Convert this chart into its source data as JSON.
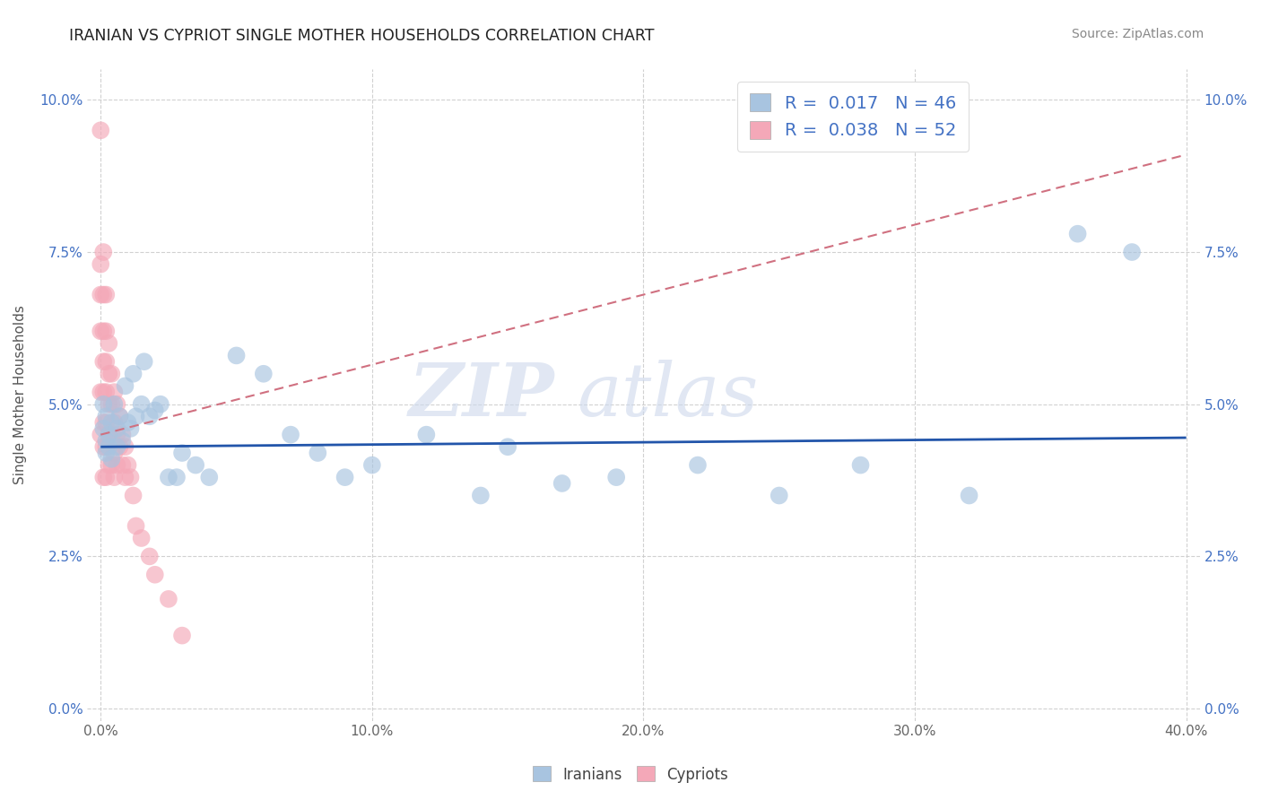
{
  "title": "IRANIAN VS CYPRIOT SINGLE MOTHER HOUSEHOLDS CORRELATION CHART",
  "source": "Source: ZipAtlas.com",
  "ylabel": "Single Mother Households",
  "xlim": [
    -0.005,
    0.405
  ],
  "ylim": [
    -0.002,
    0.105
  ],
  "xticks": [
    0.0,
    0.1,
    0.2,
    0.3,
    0.4
  ],
  "yticks": [
    0.0,
    0.025,
    0.05,
    0.075,
    0.1
  ],
  "xticklabels": [
    "0.0%",
    "10.0%",
    "20.0%",
    "30.0%",
    "40.0%"
  ],
  "yticklabels": [
    "0.0%",
    "2.5%",
    "5.0%",
    "7.5%",
    "10.0%"
  ],
  "iranian_color": "#a8c4e0",
  "cypriot_color": "#f4a8b8",
  "iranian_line_color": "#2255aa",
  "cypriot_line_color": "#d07080",
  "legend_R_iranian": "0.017",
  "legend_N_iranian": "46",
  "legend_R_cypriot": "0.038",
  "legend_N_cypriot": "52",
  "iranians_label": "Iranians",
  "cypriots_label": "Cypriots",
  "iranian_x": [
    0.001,
    0.001,
    0.002,
    0.002,
    0.002,
    0.003,
    0.003,
    0.004,
    0.004,
    0.005,
    0.006,
    0.006,
    0.007,
    0.008,
    0.009,
    0.01,
    0.011,
    0.012,
    0.013,
    0.015,
    0.016,
    0.018,
    0.02,
    0.022,
    0.025,
    0.028,
    0.03,
    0.035,
    0.04,
    0.05,
    0.06,
    0.07,
    0.08,
    0.09,
    0.1,
    0.12,
    0.14,
    0.15,
    0.17,
    0.19,
    0.22,
    0.25,
    0.28,
    0.32,
    0.36,
    0.38
  ],
  "iranian_y": [
    0.05,
    0.046,
    0.048,
    0.044,
    0.042,
    0.045,
    0.043,
    0.047,
    0.041,
    0.05,
    0.046,
    0.043,
    0.048,
    0.044,
    0.053,
    0.047,
    0.046,
    0.055,
    0.048,
    0.05,
    0.057,
    0.048,
    0.049,
    0.05,
    0.038,
    0.038,
    0.042,
    0.04,
    0.038,
    0.058,
    0.055,
    0.045,
    0.042,
    0.038,
    0.04,
    0.045,
    0.035,
    0.043,
    0.037,
    0.038,
    0.04,
    0.035,
    0.04,
    0.035,
    0.078,
    0.075
  ],
  "cypriot_x": [
    0.0,
    0.0,
    0.0,
    0.0,
    0.0,
    0.0,
    0.001,
    0.001,
    0.001,
    0.001,
    0.001,
    0.001,
    0.001,
    0.001,
    0.002,
    0.002,
    0.002,
    0.002,
    0.002,
    0.002,
    0.002,
    0.003,
    0.003,
    0.003,
    0.003,
    0.003,
    0.004,
    0.004,
    0.004,
    0.004,
    0.005,
    0.005,
    0.005,
    0.005,
    0.006,
    0.006,
    0.006,
    0.007,
    0.007,
    0.008,
    0.008,
    0.009,
    0.009,
    0.01,
    0.011,
    0.012,
    0.013,
    0.015,
    0.018,
    0.02,
    0.025,
    0.03
  ],
  "cypriot_y": [
    0.095,
    0.073,
    0.068,
    0.062,
    0.052,
    0.045,
    0.075,
    0.068,
    0.062,
    0.057,
    0.052,
    0.047,
    0.043,
    0.038,
    0.068,
    0.062,
    0.057,
    0.052,
    0.047,
    0.043,
    0.038,
    0.06,
    0.055,
    0.05,
    0.045,
    0.04,
    0.055,
    0.05,
    0.045,
    0.04,
    0.052,
    0.047,
    0.042,
    0.038,
    0.05,
    0.045,
    0.04,
    0.048,
    0.043,
    0.045,
    0.04,
    0.043,
    0.038,
    0.04,
    0.038,
    0.035,
    0.03,
    0.028,
    0.025,
    0.022,
    0.018,
    0.012
  ],
  "iranian_trend_x": [
    0.0,
    0.4
  ],
  "iranian_trend_y": [
    0.043,
    0.0445
  ],
  "cypriot_trend_x": [
    0.0,
    0.4
  ],
  "cypriot_trend_y": [
    0.045,
    0.091
  ]
}
